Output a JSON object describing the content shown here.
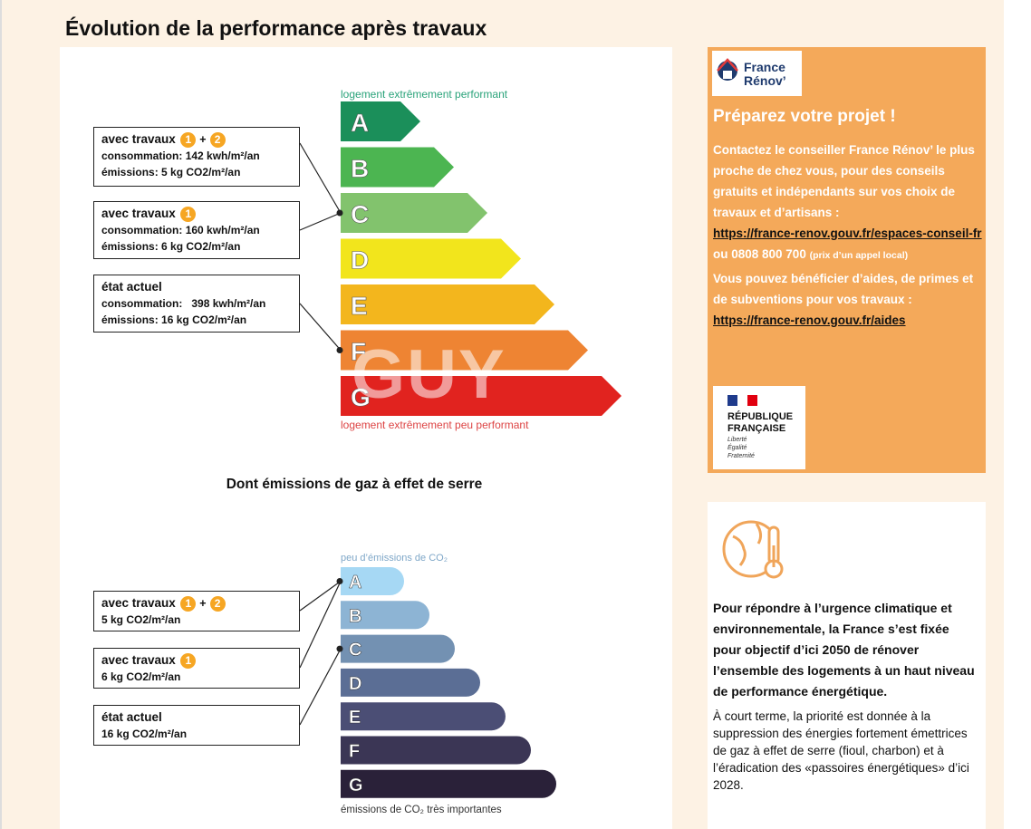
{
  "page": {
    "title": "Évolution de la performance après travaux"
  },
  "energy": {
    "top_label": "logement extrêmement performant",
    "bottom_label": "logement extrêmement peu performant",
    "classes": [
      "A",
      "B",
      "C",
      "D",
      "E",
      "F",
      "G"
    ],
    "colors": [
      "#1b8f5a",
      "#4cb551",
      "#82c36d",
      "#f2e51c",
      "#f3b61d",
      "#ee8433",
      "#e1231f"
    ],
    "boxes": [
      {
        "head": "avec travaux",
        "badges": [
          "1",
          "2"
        ],
        "plus": "+",
        "line1_label": "consommation:",
        "line1_value": "142 kwh/m²/an",
        "line2_label": "émissions:",
        "line2_value": "5 kg CO2/m²/an",
        "target_class": "C"
      },
      {
        "head": "avec travaux",
        "badges": [
          "1"
        ],
        "line1_label": "consommation:",
        "line1_value": "160 kwh/m²/an",
        "line2_label": "émissions:",
        "line2_value": "6 kg CO2/m²/an",
        "target_class": "C"
      },
      {
        "head": "état actuel",
        "badges": [],
        "line1_label": "consommation:",
        "line1_value": "398 kwh/m²/an",
        "line2_label": "émissions:",
        "line2_value": "16 kg CO2/m²/an",
        "target_class": "F"
      }
    ]
  },
  "ghg": {
    "subtitle": "Dont émissions de gaz à effet de serre",
    "top_label": "peu d’émissions de CO₂",
    "bottom_label": "émissions de CO₂ très importantes",
    "classes": [
      "A",
      "B",
      "C",
      "D",
      "E",
      "F",
      "G"
    ],
    "colors": [
      "#a6d8f4",
      "#8db4d4",
      "#7391b2",
      "#5b6e95",
      "#4b4e75",
      "#3b3655",
      "#2a2139"
    ],
    "boxes": [
      {
        "head": "avec travaux",
        "badges": [
          "1",
          "2"
        ],
        "plus": "+",
        "line": "5 kg CO2/m²/an",
        "target_class": "A"
      },
      {
        "head": "avec travaux",
        "badges": [
          "1"
        ],
        "line": "6 kg CO2/m²/an",
        "target_class": "C"
      },
      {
        "head": "état actuel",
        "badges": [],
        "line": "16 kg CO2/m²/an",
        "target_class": "C"
      }
    ]
  },
  "watermark": "GUY",
  "france_renov": {
    "logo_line1": "France",
    "logo_line2": "Rénov’",
    "title": "Préparez votre projet !",
    "body1": "Contactez le conseiller France Rénov’ le plus proche de chez vous, pour des conseils gratuits et indépendants sur vos choix de travaux et d’artisans :",
    "link1": "https://france-renov.gouv.fr/espaces-conseil-fr",
    "phone": "ou 0808 800 700",
    "phone_note": "(prix d’un appel local)",
    "body2": "Vous pouvez bénéficier d’aides, de primes et de subventions pour vos travaux :",
    "link2": "https://france-renov.gouv.fr/aides",
    "rf_line1": "RÉPUBLIQUE",
    "rf_line2": "FRANÇAISE",
    "rf_motto1": "Liberté",
    "rf_motto2": "Égalité",
    "rf_motto3": "Fraternité"
  },
  "climate": {
    "p1": "Pour répondre à l’urgence climatique et environnementale, la France s’est fixée pour objectif d’ici 2050 de rénover l’ensemble des logements à un haut niveau de performance énergétique.",
    "p2": "À court terme, la priorité est donnée à la suppression des énergies fortement émettrices de gaz à effet de serre (fioul, charbon) et à l’éradication des «passoires énergétiques» d’ici 2028."
  }
}
